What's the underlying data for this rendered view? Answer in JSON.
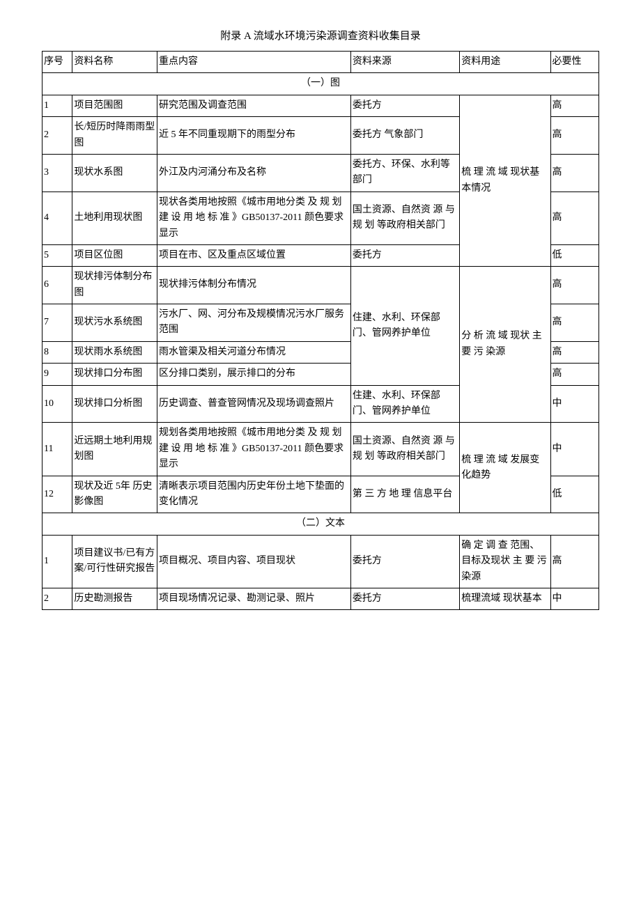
{
  "title": "附录 A 流域水环境污染源调查资料收集目录",
  "headers": {
    "col0": "序号",
    "col1": "资料名称",
    "col2": "重点内容",
    "col3": "资料来源",
    "col4": "资料用途",
    "col5": "必要性"
  },
  "section1": {
    "label": "（一）图",
    "r1": {
      "n": "1",
      "name": "项目范围图",
      "content": "研究范围及调查范围",
      "src": "委托方",
      "req": "高"
    },
    "r2": {
      "n": "2",
      "name": "长/短历时降雨雨型图",
      "content": "近 5 年不同重现期下的雨型分布",
      "src": "委托方\n气象部门",
      "req": "高"
    },
    "r3": {
      "n": "3",
      "name": "现状水系图",
      "content": "外江及内河涌分布及名称",
      "src": "委托方、环保、水利等部门",
      "req": "高"
    },
    "r4": {
      "n": "4",
      "name": "土地利用现状图",
      "content": "现状各类用地按照《城市用地分类 及 规 划 建 设 用 地 标 准 》GB50137-2011 颜色要求显示",
      "src": "国土资源、自然资 源 与 规 划 等政府相关部门",
      "req": "高"
    },
    "r5": {
      "n": "5",
      "name": "项目区位图",
      "content": "项目在市、区及重点区域位置",
      "src": "委托方",
      "req": "低"
    },
    "use1_5": "梳 理 流 域 现状基本情况",
    "r6": {
      "n": "6",
      "name": "现状排污体制分布图",
      "content": "现状排污体制分布情况",
      "req": "高"
    },
    "r7": {
      "n": "7",
      "name": "现状污水系统图",
      "content": "污水厂、网、河分布及规模情况污水厂服务范围",
      "req": "高"
    },
    "r8": {
      "n": "8",
      "name": "现状雨水系统图",
      "content": "雨水管渠及相关河道分布情况",
      "req": "高"
    },
    "r9": {
      "n": "9",
      "name": "现状排口分布图",
      "content": "区分排口类别，展示排口的分布",
      "req": "高"
    },
    "src6_9": "住建、水利、环保部门、管网养护单位",
    "r10": {
      "n": "10",
      "name": "现状排口分析图",
      "content": "历史调查、普查管网情况及现场调查照片",
      "src": "住建、水利、环保部门、管网养护单位",
      "req": "中"
    },
    "use6_10": "分 析 流 域 现状 主 要 污 染源",
    "r11": {
      "n": "11",
      "name": "近远期土地利用规划图",
      "content": "规划各类用地按照《城市用地分类 及 规 划 建 设 用 地 标 准 》GB50137-2011 颜色要求显示",
      "src": "国土资源、自然资 源 与 规 划 等政府相关部门",
      "req": "中"
    },
    "r12": {
      "n": "12",
      "name": "现状及近 5年\n历史影像图",
      "content": "清晰表示项目范围内历史年份土地下垫面的变化情况",
      "src": "第 三 方 地 理 信息平台",
      "req": "低"
    },
    "use11_12": "梳 理 流 域 发展变化趋势"
  },
  "section2": {
    "label": "（二）文本",
    "r1": {
      "n": "1",
      "name": "项目建议书/已有方案/可行性研究报告",
      "content": "项目概况、项目内容、项目现状",
      "src": "委托方",
      "use": "确 定 调 查 范围、目标及现状 主 要 污 染源",
      "req": "高"
    },
    "r2": {
      "n": "2",
      "name": "历史勘测报告",
      "content": "项目现场情况记录、勘测记录、照片",
      "src": "委托方",
      "use": "梳理流域\n现状基本",
      "req": "中"
    }
  }
}
